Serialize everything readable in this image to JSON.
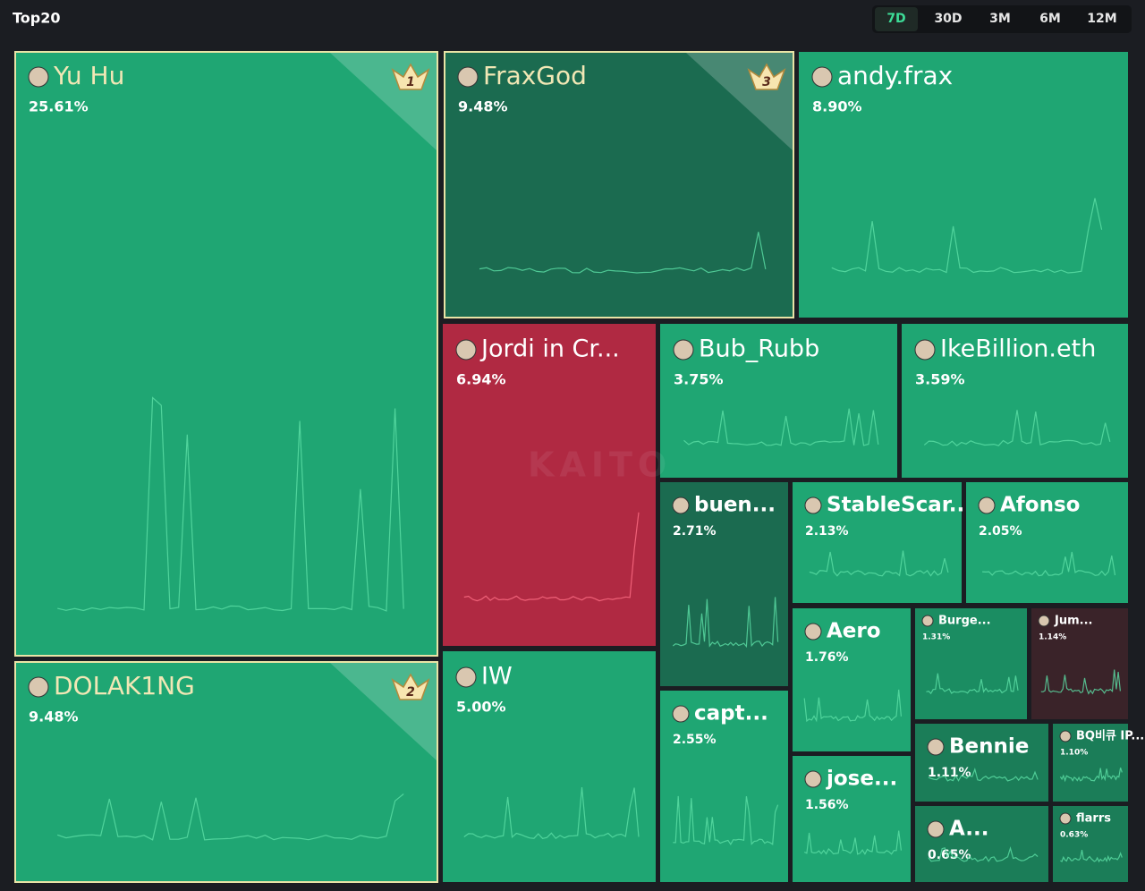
{
  "chart_data": {
    "type": "treemap",
    "title": "Top20",
    "categories": [
      "Yu Hu",
      "FraxGod",
      "DOLAK1NG",
      "andy.frax",
      "Jordi in Cr...",
      "IW",
      "Bub_Rubb",
      "IkeBillion.eth",
      "buen...",
      "capt...",
      "StableScar...",
      "Afonso",
      "Aero",
      "jose...",
      "Burge...",
      "Jum...",
      "Bennie",
      "BQ비큐 IP...",
      "A...",
      "flarrs"
    ],
    "values": [
      25.61,
      9.48,
      9.48,
      8.9,
      6.94,
      5.0,
      3.75,
      3.59,
      2.71,
      2.55,
      2.13,
      2.05,
      1.76,
      1.56,
      1.31,
      1.14,
      1.11,
      1.1,
      0.65,
      0.63
    ],
    "value_labels": [
      "25.61%",
      "9.48%",
      "9.48%",
      "8.90%",
      "6.94%",
      "5.00%",
      "3.75%",
      "3.59%",
      "2.71%",
      "2.55%",
      "2.13%",
      "2.05%",
      "1.76%",
      "1.56%",
      "1.31%",
      "1.14%",
      "1.11%",
      "1.10%",
      "0.65%",
      "0.63%"
    ],
    "colors": [
      "#1fa673",
      "#1b6b50",
      "#1fa673",
      "#1fa673",
      "#b02942",
      "#1fa673",
      "#1fa673",
      "#1fa673",
      "#1b6b50",
      "#1fa673",
      "#1fa673",
      "#1fa673",
      "#1fa673",
      "#1fa673",
      "#1b8d62",
      "#3a2329",
      "#1b7d58",
      "#1b7d58",
      "#1b7d58",
      "#1b7d58"
    ],
    "ranks": [
      1,
      3,
      2,
      null,
      null,
      null,
      null,
      null,
      null,
      null,
      null,
      null,
      null,
      null,
      null,
      null,
      null,
      null,
      null,
      null
    ],
    "watermark": "KAITO"
  },
  "controls": {
    "periods": [
      "7D",
      "30D",
      "3M",
      "6M",
      "12M"
    ],
    "active": 0
  }
}
